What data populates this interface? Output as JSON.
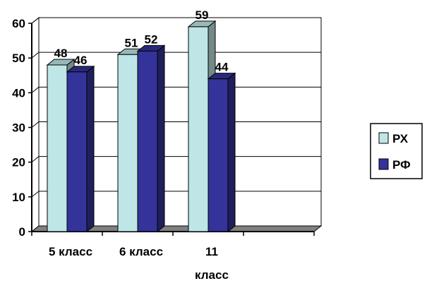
{
  "chart_data": {
    "type": "bar",
    "categories": [
      [
        "5 класс"
      ],
      [
        "6 класс"
      ],
      [
        "11",
        "класс"
      ]
    ],
    "extra_slots": 1,
    "series": [
      {
        "name": "РХ",
        "values": [
          48,
          51,
          59
        ],
        "color": "#bfe6e6"
      },
      {
        "name": "РФ",
        "values": [
          46,
          52,
          44
        ],
        "color": "#33339a"
      }
    ],
    "ylim": [
      0,
      60
    ],
    "yticks": [
      "0",
      "10",
      "20",
      "30",
      "40",
      "50",
      "60"
    ],
    "data_labels": [
      "48",
      "46",
      "51",
      "52",
      "59",
      "44"
    ],
    "grid": true,
    "three_d": true,
    "legend_position": "right",
    "floor_color": "#808080"
  }
}
